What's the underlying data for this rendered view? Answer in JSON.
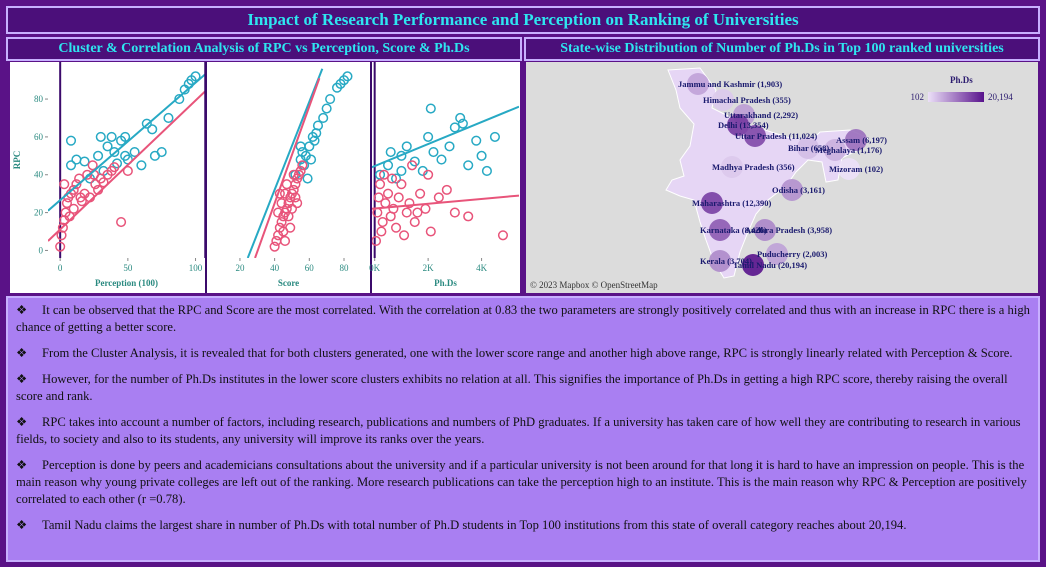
{
  "title": "Impact of Research Performance and Perception on Ranking of Universities",
  "cluster_panel": {
    "title": "Cluster & Correlation Analysis of RPC vs Perception, Score & Ph.Ds"
  },
  "chart_data": [
    {
      "type": "scatter",
      "y_label": "RPC",
      "x_label": "Perception (100)",
      "xlim": [
        -9,
        107
      ],
      "ylim": [
        -4,
        98
      ],
      "xticks": [
        0,
        50,
        100
      ],
      "yticks": [
        0,
        20,
        40,
        60,
        80
      ],
      "series": [
        {
          "color": "#27a9c4",
          "x": [
            8,
            12,
            18,
            22,
            28,
            32,
            35,
            40,
            42,
            45,
            48,
            50,
            55,
            60,
            64,
            68,
            70,
            75,
            80,
            88,
            92,
            95,
            97,
            100,
            8,
            30,
            38,
            48
          ],
          "values": [
            45,
            48,
            47,
            38,
            50,
            42,
            55,
            52,
            46,
            58,
            50,
            48,
            52,
            45,
            67,
            64,
            50,
            52,
            70,
            80,
            85,
            88,
            90,
            92,
            58,
            60,
            60,
            60
          ]
        },
        {
          "color": "#e8547a",
          "x": [
            0,
            1,
            2,
            3,
            4,
            5,
            6,
            8,
            10,
            12,
            14,
            16,
            18,
            20,
            22,
            24,
            26,
            28,
            30,
            32,
            35,
            38,
            40,
            45,
            50,
            3,
            7,
            10,
            15,
            25
          ],
          "values": [
            2,
            8,
            12,
            16,
            20,
            25,
            28,
            30,
            32,
            35,
            38,
            26,
            30,
            40,
            28,
            45,
            35,
            32,
            38,
            36,
            40,
            42,
            44,
            15,
            42,
            35,
            18,
            22,
            28,
            40
          ]
        }
      ],
      "trend_lines": [
        {
          "color": "#27a9c4",
          "x": [
            -9,
            107
          ],
          "values": [
            21,
            93
          ]
        },
        {
          "color": "#e8547a",
          "x": [
            -9,
            107
          ],
          "values": [
            5,
            84
          ]
        }
      ]
    },
    {
      "type": "scatter",
      "x_label": "Score",
      "xlim": [
        1,
        95
      ],
      "ylim": [
        -4,
        98
      ],
      "xticks": [
        20,
        40,
        60,
        80
      ],
      "series": [
        {
          "color": "#27a9c4",
          "x": [
            52,
            55,
            56,
            58,
            60,
            62,
            63,
            65,
            68,
            72,
            76,
            78,
            80,
            82,
            57,
            59,
            61,
            64,
            70,
            55
          ],
          "values": [
            40,
            48,
            52,
            50,
            55,
            60,
            58,
            66,
            70,
            80,
            86,
            88,
            90,
            92,
            45,
            38,
            48,
            62,
            75,
            55
          ]
        },
        {
          "color": "#e8547a",
          "x": [
            40,
            41,
            42,
            43,
            44,
            45,
            46,
            47,
            48,
            49,
            50,
            51,
            52,
            53,
            54,
            55,
            44,
            46,
            48,
            50,
            42,
            45,
            47,
            52,
            56,
            43,
            49,
            51,
            46,
            53
          ],
          "values": [
            2,
            5,
            8,
            12,
            15,
            18,
            20,
            22,
            25,
            28,
            30,
            32,
            35,
            38,
            40,
            42,
            25,
            30,
            18,
            22,
            20,
            10,
            35,
            28,
            45,
            30,
            12,
            40,
            5,
            25
          ]
        }
      ],
      "trend_lines": [
        {
          "color": "#27a9c4",
          "x": [
            24.5,
            67.5
          ],
          "values": [
            -4,
            96
          ]
        },
        {
          "color": "#e8547a",
          "x": [
            28.7,
            65.8
          ],
          "values": [
            -4,
            91
          ]
        }
      ]
    },
    {
      "type": "scatter",
      "x_label": "Ph.Ds",
      "xlim": [
        -100,
        5400
      ],
      "ylim": [
        -4,
        98
      ],
      "xticks": [
        {
          "value": 0,
          "label": "0K"
        },
        {
          "value": 2000,
          "label": "2K"
        },
        {
          "value": 4000,
          "label": "4K"
        }
      ],
      "series": [
        {
          "color": "#27a9c4",
          "x": [
            200,
            500,
            800,
            1000,
            1200,
            1500,
            1800,
            2000,
            2200,
            2500,
            2800,
            3000,
            3200,
            3500,
            3800,
            4000,
            4200,
            4500,
            2100,
            3300,
            1000,
            600
          ],
          "values": [
            40,
            45,
            38,
            50,
            55,
            47,
            42,
            60,
            52,
            48,
            55,
            65,
            70,
            45,
            58,
            50,
            42,
            60,
            75,
            67,
            42,
            52
          ]
        },
        {
          "color": "#e8547a",
          "x": [
            50,
            100,
            150,
            200,
            250,
            300,
            400,
            500,
            600,
            700,
            800,
            900,
            1000,
            1100,
            1200,
            1300,
            1500,
            1700,
            1900,
            2100,
            2400,
            2700,
            3000,
            3500,
            4800,
            350,
            650,
            1400,
            2000,
            1600
          ],
          "values": [
            5,
            20,
            28,
            35,
            10,
            15,
            25,
            30,
            18,
            22,
            12,
            28,
            35,
            8,
            20,
            25,
            15,
            30,
            22,
            10,
            28,
            32,
            20,
            18,
            8,
            40,
            38,
            45,
            40,
            20
          ]
        }
      ],
      "trend_lines": [
        {
          "color": "#27a9c4",
          "x": [
            -100,
            5400
          ],
          "values": [
            44,
            76
          ]
        },
        {
          "color": "#e8547a",
          "x": [
            -100,
            5400
          ],
          "values": [
            22,
            29
          ]
        }
      ]
    }
  ],
  "map_panel": {
    "title": "State-wise Distribution of  Number of Ph.Ds in Top 100 ranked universities",
    "legend": {
      "title": "Ph.Ds",
      "min": 102,
      "max": {
        "value": 20194,
        "label": "20,194"
      }
    },
    "attribution": "© 2023 Mapbox © OpenStreetMap",
    "states": [
      {
        "label": "Jammu and Kashmir (1,903)",
        "value": 1903
      },
      {
        "label": "Himachal Pradesh (355)",
        "value": 355
      },
      {
        "label": "Uttarakhand (2,292)",
        "value": 2292
      },
      {
        "label": "Delhi (13,354)",
        "value": 13354
      },
      {
        "label": "Uttar Pradesh (11,024)",
        "value": 11024
      },
      {
        "label": "Bihar (658)",
        "value": 658
      },
      {
        "label": "Assam (6,197)",
        "value": 6197
      },
      {
        "label": "Meghalaya (1,176)",
        "value": 1176
      },
      {
        "label": "Mizoram (102)",
        "value": 102
      },
      {
        "label": "Madhya Pradesh (356)",
        "value": 356
      },
      {
        "label": "Odisha (3,161)",
        "value": 3161
      },
      {
        "label": "Maharashtra (12,390)",
        "value": 12390
      },
      {
        "label": "Karnataka (8,426)",
        "value": 8426
      },
      {
        "label": "Andhra Pradesh (3,958)",
        "value": 3958
      },
      {
        "label": "Puducherry (2,003)",
        "value": 2003
      },
      {
        "label": "Kerala (3,704)",
        "value": 3704
      },
      {
        "label": "Tamil Nadu (20,194)",
        "value": 20194
      }
    ]
  },
  "bullets": [
    "It can be observed that the RPC and Score are the most correlated. With the correlation at 0.83 the two parameters are strongly positively correlated and thus with an increase in RPC there is a high chance of getting a better score.",
    "From the Cluster Analysis, it is  revealed that for both clusters generated, one with the lower score range and another high above range, RPC is strongly linearly related with Perception & Score.",
    "However, for the number of Ph.Ds institutes in the lower score clusters exhibits no relation at all. This signifies the importance of Ph.Ds in getting a high RPC score, thereby raising the overall score and rank.",
    "RPC takes into account a number of factors, including research, publications and numbers of PhD graduates. If a university has taken care of how well they are contributing to research in various fields, to society and also to its students, any university will improve its ranks over the years.",
    "Perception is done by peers and academicians consultations about the university and if a particular university is not been around for that long it is hard to have an impression on people. This is the main reason why young private colleges are left out of the ranking. More research publications can take the perception high to an institute. This is the main reason why RPC & Perception are positively correlated to each other (r =0.78).",
    "Tamil Nadu claims the largest share in number of Ph.Ds with total number of Ph.D students in Top 100  institutions from this state of overall category reaches about 20,194."
  ]
}
